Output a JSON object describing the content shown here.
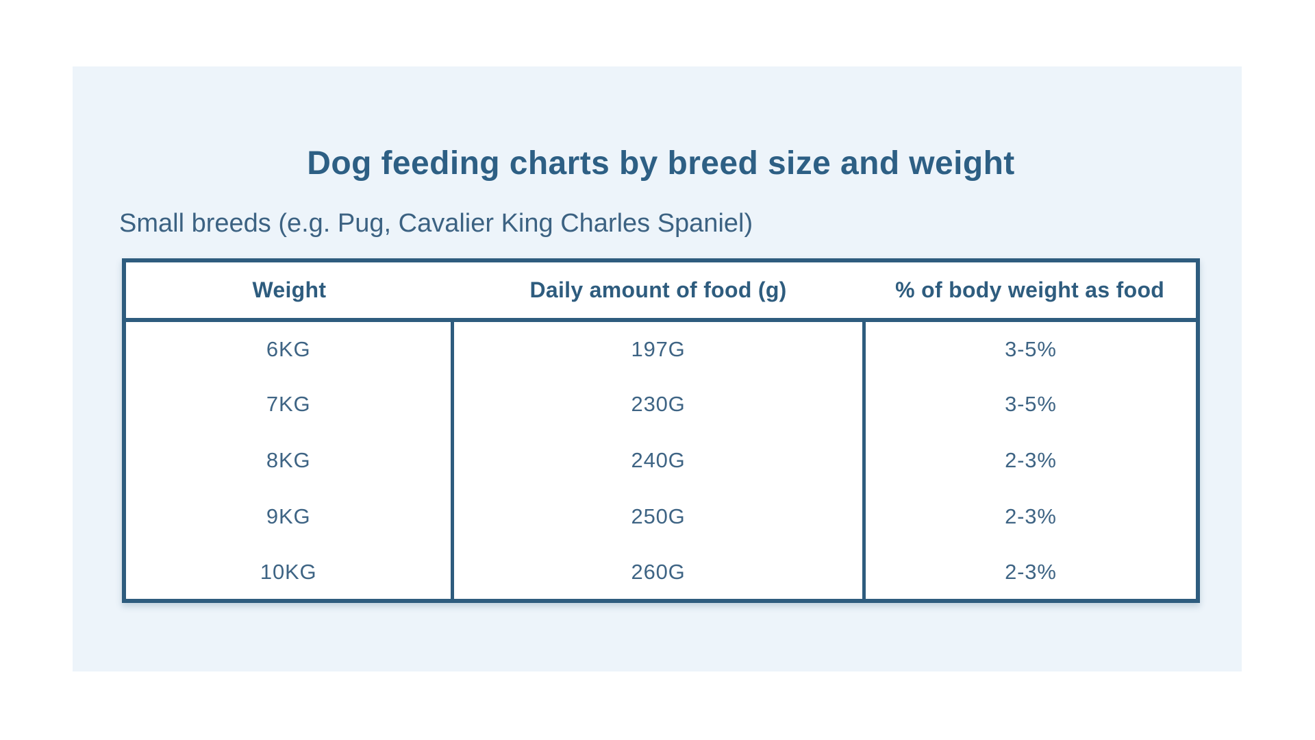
{
  "colors": {
    "accent_border": "#2e5c7e",
    "title_text": "#2d5f84",
    "subtitle_text": "#3c6282",
    "body_text": "#3e6484",
    "panel_background": "#edf4fa",
    "cell_background": "#ffffff",
    "page_background": "#ffffff"
  },
  "chart_data": {
    "type": "table",
    "title": "Dog feeding charts by breed size and weight",
    "subtitle": "Small breeds (e.g. Pug, Cavalier King Charles Spaniel)",
    "columns": [
      "Weight",
      "Daily amount of food (g)",
      "% of body weight as food"
    ],
    "rows": [
      [
        "6KG",
        "197G",
        "3-5%"
      ],
      [
        "7KG",
        "230G",
        "3-5%"
      ],
      [
        "8KG",
        "240G",
        "2-3%"
      ],
      [
        "9KG",
        "250G",
        "2-3%"
      ],
      [
        "10KG",
        "260G",
        "2-3%"
      ]
    ]
  }
}
